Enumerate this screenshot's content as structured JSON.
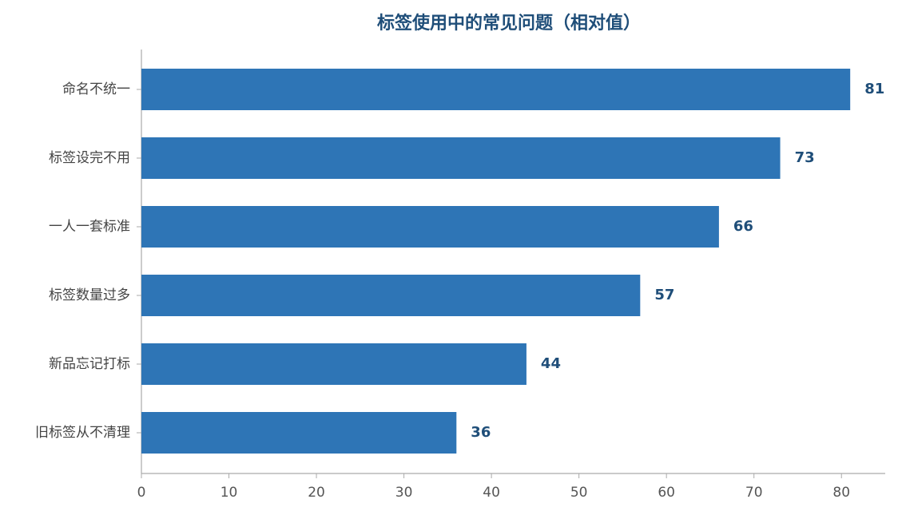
{
  "chart_data": {
    "type": "bar",
    "orientation": "horizontal",
    "title": "标签使用中的常见问题（相对值）",
    "categories": [
      "命名不统一",
      "标签设完不用",
      "一人一套标准",
      "标签数量过多",
      "新品忘记打标",
      "旧标签从不清理"
    ],
    "values": [
      81,
      73,
      66,
      57,
      44,
      36
    ],
    "color": "#2e75b6",
    "xlim": [
      0,
      85
    ],
    "xticks": [
      0,
      10,
      20,
      30,
      40,
      50,
      60,
      70,
      80
    ],
    "grid": false
  }
}
